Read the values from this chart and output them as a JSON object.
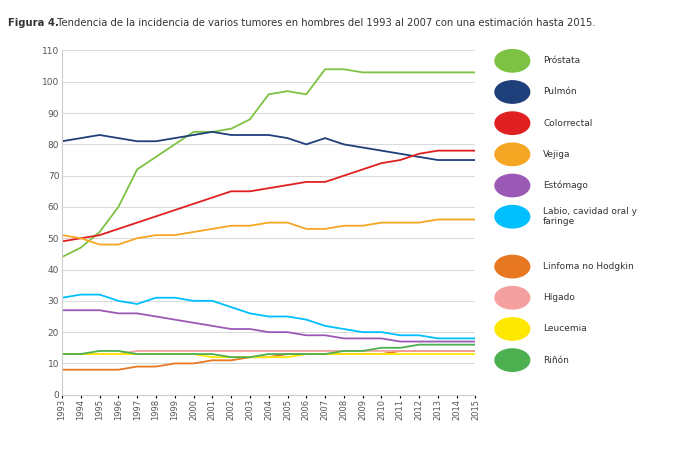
{
  "title_bold": "Figura 4.",
  "title_rest": "  Tendencia de la incidencia de varios tumores en hombres del 1993 al 2007 con una estimación hasta 2015.",
  "years": [
    1993,
    1994,
    1995,
    1996,
    1997,
    1998,
    1999,
    2000,
    2001,
    2002,
    2003,
    2004,
    2005,
    2006,
    2007,
    2008,
    2009,
    2010,
    2011,
    2012,
    2013,
    2014,
    2015
  ],
  "series": {
    "Próstata": {
      "color": "#7DC242",
      "values": [
        44,
        47,
        52,
        60,
        72,
        76,
        80,
        84,
        84,
        85,
        88,
        96,
        97,
        96,
        104,
        104,
        103,
        103,
        103,
        103,
        103,
        103,
        103
      ]
    },
    "Pulmón": {
      "color": "#1F3F7A",
      "values": [
        81,
        82,
        83,
        82,
        81,
        81,
        82,
        83,
        84,
        83,
        83,
        83,
        82,
        80,
        82,
        80,
        79,
        78,
        77,
        76,
        75,
        75,
        75
      ]
    },
    "Colorrectal": {
      "color": "#E02020",
      "values": [
        49,
        50,
        51,
        53,
        55,
        57,
        59,
        61,
        63,
        65,
        65,
        66,
        67,
        68,
        68,
        70,
        72,
        74,
        75,
        77,
        78,
        78,
        78
      ]
    },
    "Vejiga": {
      "color": "#F5A623",
      "values": [
        51,
        50,
        48,
        48,
        50,
        51,
        51,
        52,
        53,
        54,
        54,
        55,
        55,
        53,
        53,
        54,
        54,
        55,
        55,
        55,
        56,
        56,
        56
      ]
    },
    "Estómago": {
      "color": "#9B59B6",
      "values": [
        27,
        27,
        27,
        26,
        26,
        25,
        24,
        23,
        22,
        21,
        21,
        20,
        20,
        19,
        19,
        18,
        18,
        18,
        17,
        17,
        17,
        17,
        17
      ]
    },
    "Labio, cavidad oral y\nfaringe": {
      "color": "#00BFFF",
      "values": [
        31,
        32,
        32,
        30,
        29,
        31,
        31,
        30,
        30,
        28,
        26,
        25,
        25,
        24,
        22,
        21,
        20,
        20,
        19,
        19,
        18,
        18,
        18
      ]
    },
    "Linfoma no Hodgkin": {
      "color": "#E87722",
      "values": [
        8,
        8,
        8,
        8,
        9,
        9,
        10,
        10,
        11,
        11,
        12,
        12,
        13,
        13,
        13,
        13,
        13,
        13,
        14,
        14,
        14,
        14,
        14
      ]
    },
    "Hígado": {
      "color": "#F4A0A0",
      "values": [
        13,
        13,
        13,
        13,
        14,
        14,
        14,
        14,
        14,
        14,
        14,
        14,
        14,
        14,
        14,
        14,
        14,
        14,
        14,
        14,
        14,
        14,
        14
      ]
    },
    "Leucemia": {
      "color": "#FFE800",
      "values": [
        13,
        13,
        13,
        13,
        13,
        13,
        13,
        13,
        12,
        12,
        12,
        12,
        12,
        13,
        13,
        13,
        13,
        13,
        13,
        13,
        13,
        13,
        13
      ]
    },
    "Riñón": {
      "color": "#4CAF50",
      "values": [
        13,
        13,
        14,
        14,
        13,
        13,
        13,
        13,
        13,
        12,
        12,
        13,
        13,
        13,
        13,
        14,
        14,
        15,
        15,
        16,
        16,
        16,
        16
      ]
    }
  },
  "ylim": [
    0,
    110
  ],
  "yticks": [
    0,
    10,
    20,
    30,
    40,
    50,
    60,
    70,
    80,
    90,
    100,
    110
  ],
  "background_color": "#FFFFFF",
  "header_bg": "#9DCFCF",
  "plot_bg": "#FFFFFF",
  "grid_color": "#CCCCCC",
  "spine_color": "#CCCCCC"
}
